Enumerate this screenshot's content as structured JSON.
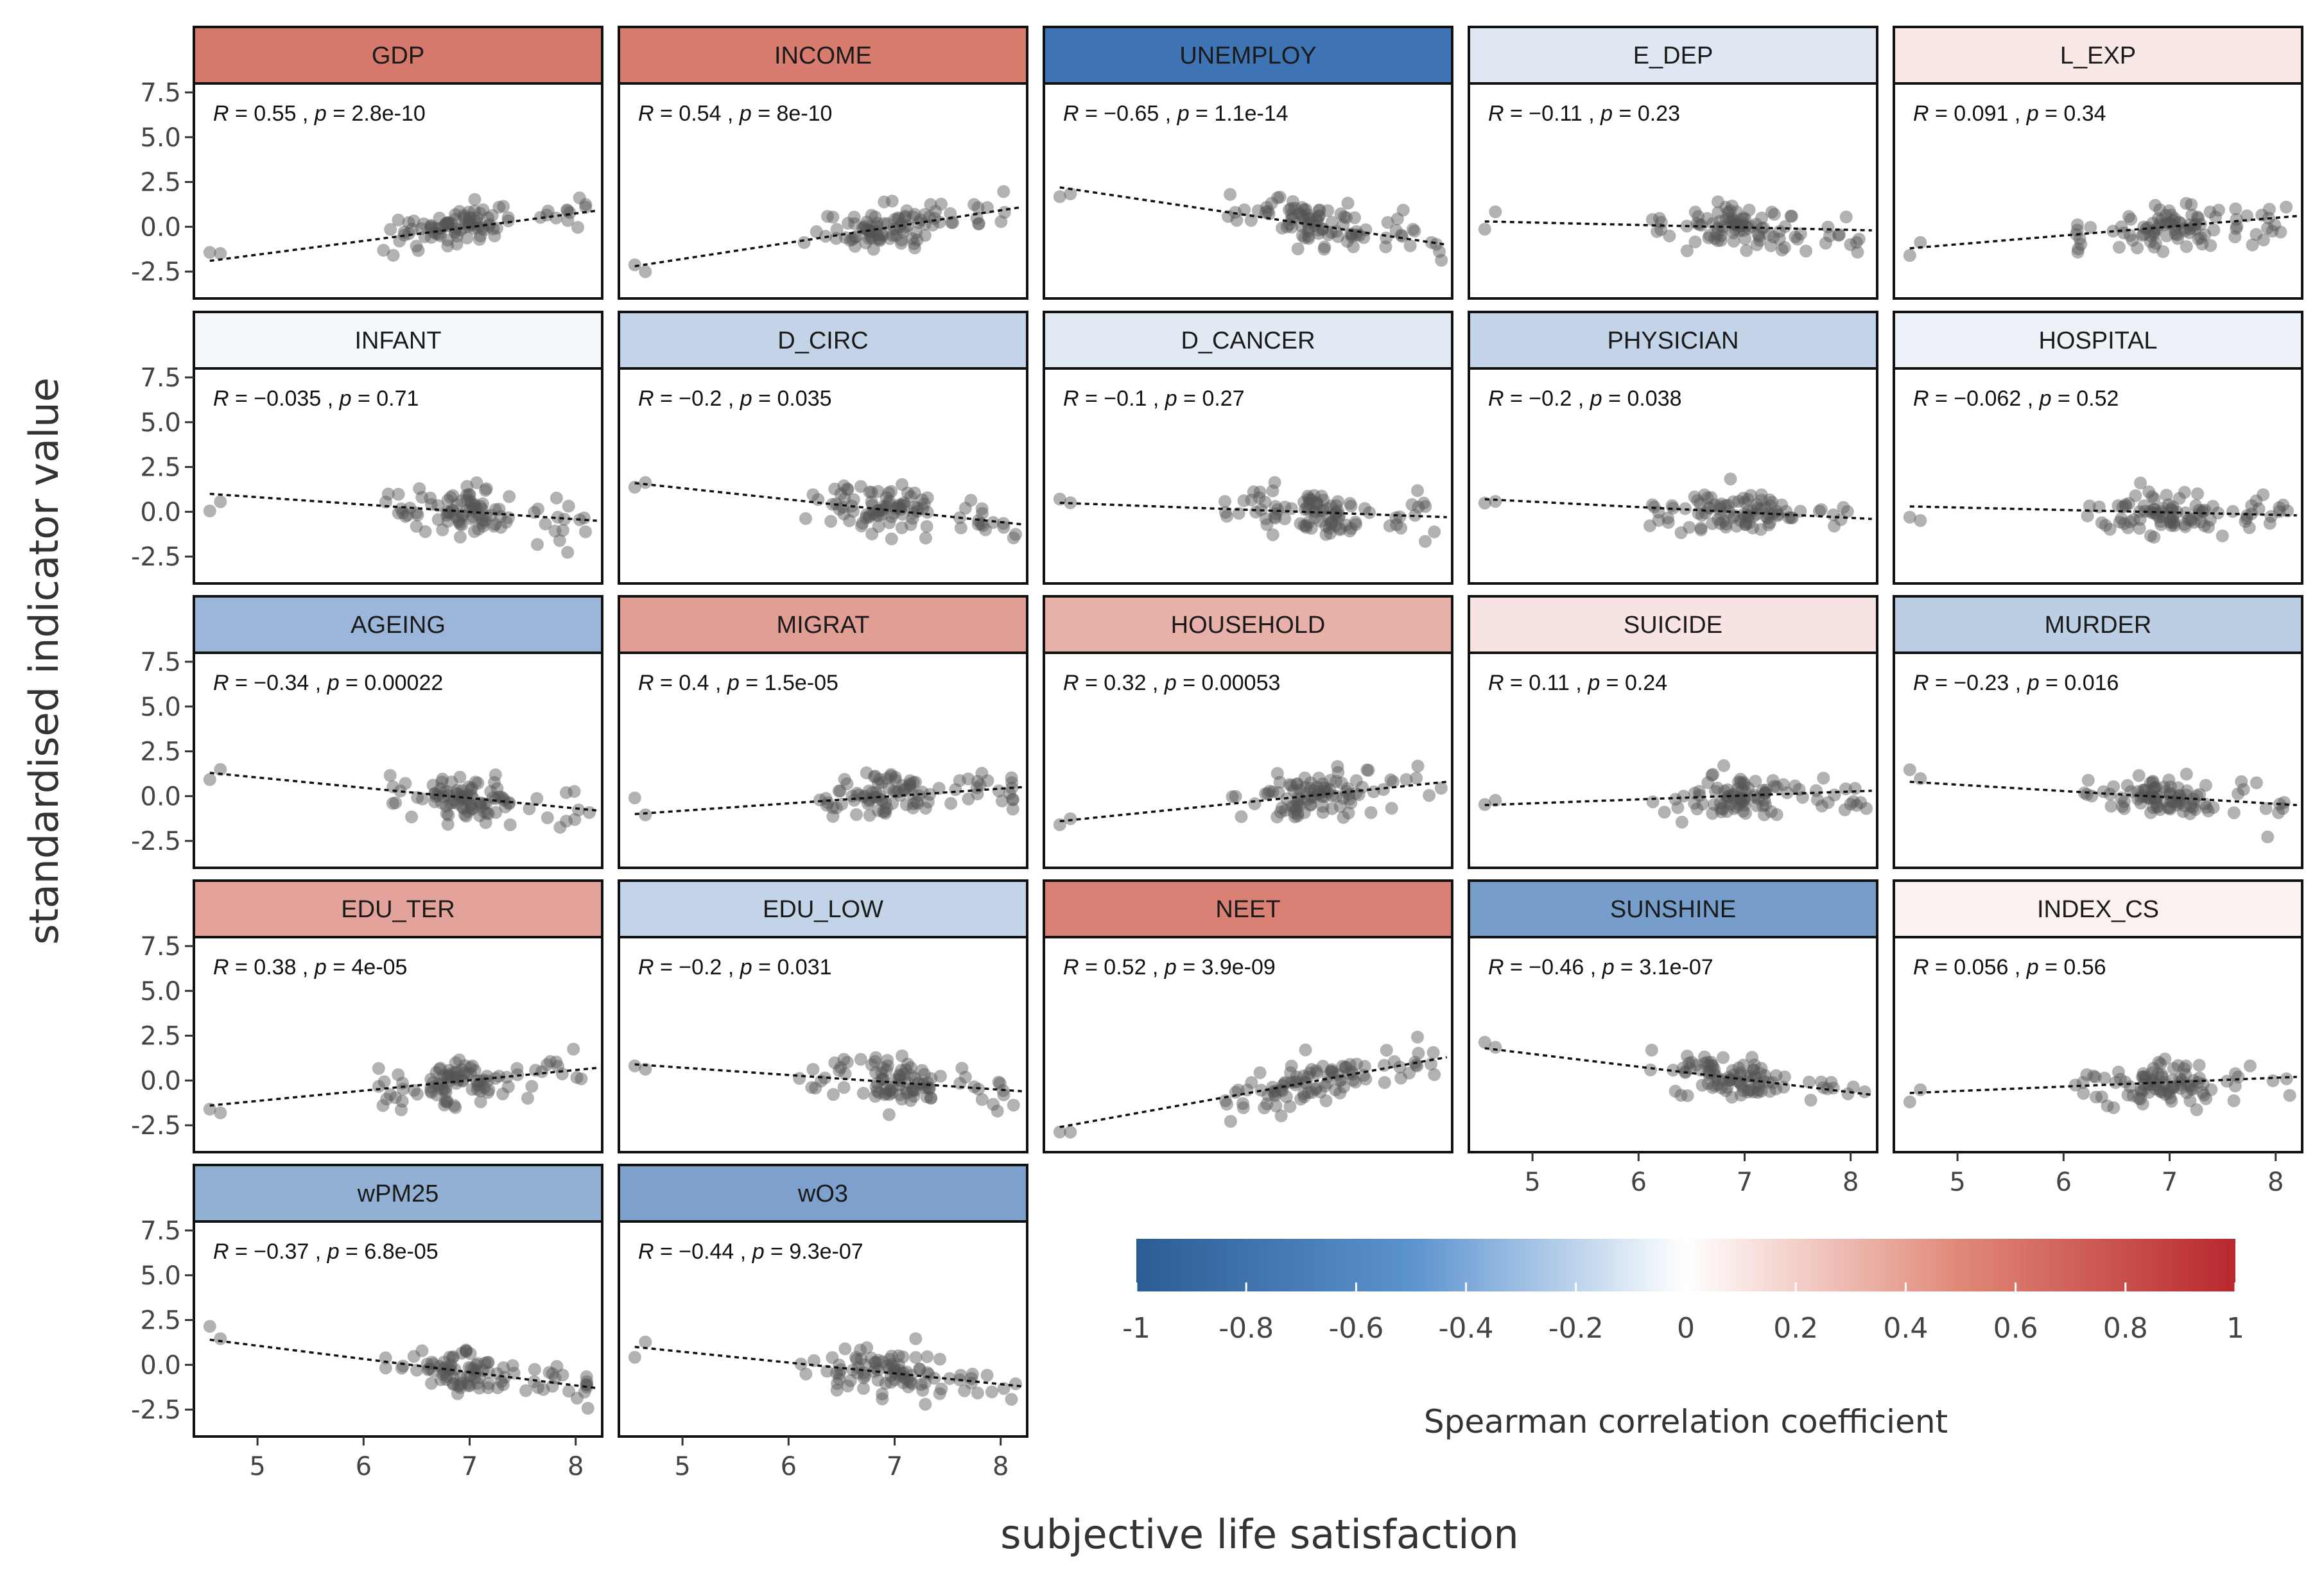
{
  "chart_data": {
    "type": "scatter",
    "layout": "facet-grid",
    "xlabel": "subjective life satisfaction",
    "ylabel": "standardised indicator value",
    "xlim": [
      4.4,
      8.25
    ],
    "ylim": [
      -4.0,
      8.0
    ],
    "x_ticks": [
      "5",
      "6",
      "7",
      "8"
    ],
    "x_tick_values": [
      5,
      6,
      7,
      8
    ],
    "y_ticks": [
      "-2.5",
      "0.0",
      "2.5",
      "5.0",
      "7.5"
    ],
    "y_tick_values": [
      -2.5,
      0,
      2.5,
      5,
      7.5
    ],
    "trend_line": "dotted linear fit",
    "point_color": "#555555",
    "panels": [
      {
        "name": "GDP",
        "r_label": "R = 0.55",
        "p_label": "p = 2.8e-10",
        "r": 0.55,
        "fit": [
          -1.9,
          0.9
        ]
      },
      {
        "name": "INCOME",
        "r_label": "R = 0.54",
        "p_label": "p = 8e-10",
        "r": 0.54,
        "fit": [
          -2.2,
          1.1
        ]
      },
      {
        "name": "UNEMPLOY",
        "r_label": "R = −0.65",
        "p_label": "p = 1.1e-14",
        "r": -0.65,
        "fit": [
          2.2,
          -1.0
        ]
      },
      {
        "name": "E_DEP",
        "r_label": "R = −0.11",
        "p_label": "p = 0.23",
        "r": -0.11,
        "fit": [
          0.3,
          -0.2
        ]
      },
      {
        "name": "L_EXP",
        "r_label": "R = 0.091",
        "p_label": "p = 0.34",
        "r": 0.091,
        "fit": [
          -1.2,
          0.6
        ]
      },
      {
        "name": "INFANT",
        "r_label": "R = −0.035",
        "p_label": "p = 0.71",
        "r": -0.035,
        "fit": [
          1.0,
          -0.5
        ]
      },
      {
        "name": "D_CIRC",
        "r_label": "R = −0.2",
        "p_label": "p = 0.035",
        "r": -0.2,
        "fit": [
          1.6,
          -0.7
        ]
      },
      {
        "name": "D_CANCER",
        "r_label": "R = −0.1",
        "p_label": "p = 0.27",
        "r": -0.1,
        "fit": [
          0.5,
          -0.3
        ]
      },
      {
        "name": "PHYSICIAN",
        "r_label": "R = −0.2",
        "p_label": "p = 0.038",
        "r": -0.2,
        "fit": [
          0.7,
          -0.4
        ]
      },
      {
        "name": "HOSPITAL",
        "r_label": "R = −0.062",
        "p_label": "p = 0.52",
        "r": -0.062,
        "fit": [
          0.3,
          -0.2
        ]
      },
      {
        "name": "AGEING",
        "r_label": "R = −0.34",
        "p_label": "p = 0.00022",
        "r": -0.34,
        "fit": [
          1.3,
          -0.8
        ]
      },
      {
        "name": "MIGRAT",
        "r_label": "R = 0.4",
        "p_label": "p = 1.5e-05",
        "r": 0.4,
        "fit": [
          -1.0,
          0.5
        ]
      },
      {
        "name": "HOUSEHOLD",
        "r_label": "R = 0.32",
        "p_label": "p = 0.00053",
        "r": 0.32,
        "fit": [
          -1.4,
          0.8
        ]
      },
      {
        "name": "SUICIDE",
        "r_label": "R = 0.11",
        "p_label": "p = 0.24",
        "r": 0.11,
        "fit": [
          -0.5,
          0.3
        ]
      },
      {
        "name": "MURDER",
        "r_label": "R = −0.23",
        "p_label": "p = 0.016",
        "r": -0.23,
        "fit": [
          0.8,
          -0.5
        ]
      },
      {
        "name": "EDU_TER",
        "r_label": "R = 0.38",
        "p_label": "p = 4e-05",
        "r": 0.38,
        "fit": [
          -1.4,
          0.7
        ]
      },
      {
        "name": "EDU_LOW",
        "r_label": "R = −0.2",
        "p_label": "p = 0.031",
        "r": -0.2,
        "fit": [
          0.9,
          -0.6
        ]
      },
      {
        "name": "NEET",
        "r_label": "R = 0.52",
        "p_label": "p = 3.9e-09",
        "r": 0.52,
        "fit": [
          -2.6,
          1.3
        ]
      },
      {
        "name": "SUNSHINE",
        "r_label": "R = −0.46",
        "p_label": "p = 3.1e-07",
        "r": -0.46,
        "fit": [
          1.8,
          -0.8
        ]
      },
      {
        "name": "INDEX_CS",
        "r_label": "R = 0.056",
        "p_label": "p = 0.56",
        "r": 0.056,
        "fit": [
          -0.7,
          0.2
        ]
      },
      {
        "name": "wPM25",
        "r_label": "R = −0.37",
        "p_label": "p = 6.8e-05",
        "r": -0.37,
        "fit": [
          1.4,
          -1.3
        ]
      },
      {
        "name": "wO3",
        "r_label": "R = −0.44",
        "p_label": "p = 9.3e-07",
        "r": -0.44,
        "fit": [
          1.0,
          -1.2
        ]
      }
    ],
    "colorbar": {
      "title": "Spearman correlation coefficient",
      "min": -1,
      "max": 1,
      "ticks": [
        "-1",
        "-0.8",
        "-0.6",
        "-0.4",
        "-0.2",
        "0",
        "0.2",
        "0.4",
        "0.6",
        "0.8",
        "1"
      ],
      "tick_values": [
        -1,
        -0.8,
        -0.6,
        -0.4,
        -0.2,
        0,
        0.2,
        0.4,
        0.6,
        0.8,
        1
      ],
      "low_color": "#2166ac",
      "mid_color": "#ffffff",
      "high_color": "#b2182b"
    }
  }
}
